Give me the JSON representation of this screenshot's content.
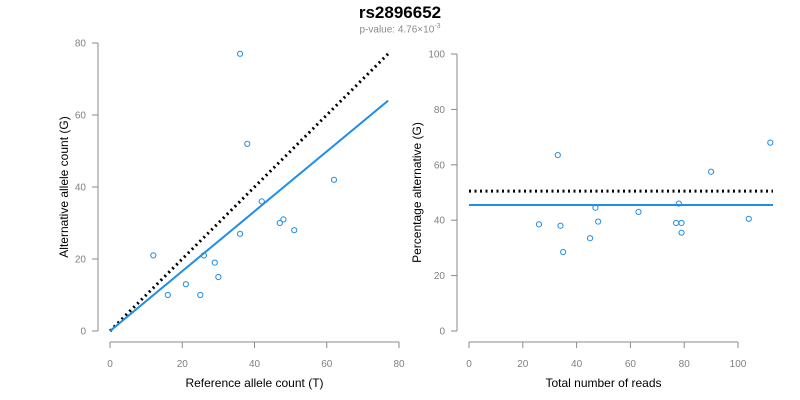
{
  "header": {
    "title": "rs2896652",
    "pvalue_prefix": "p-value: 4.76×10",
    "pvalue_exp": "-3"
  },
  "colors": {
    "points": "#1f8ee8",
    "fit_line": "#1f8ee8",
    "ref_line": "#000000",
    "axis": "#8a8a8a"
  },
  "chart_data": [
    {
      "type": "scatter",
      "xlabel": "Reference allele count (T)",
      "ylabel": "Alternative allele count (G)",
      "xlim": [
        0,
        80
      ],
      "ylim": [
        0,
        80
      ],
      "xticks": [
        0,
        20,
        40,
        60,
        80
      ],
      "yticks": [
        0,
        20,
        40,
        60,
        80
      ],
      "grid": false,
      "points": [
        {
          "x": 12,
          "y": 21
        },
        {
          "x": 16,
          "y": 10
        },
        {
          "x": 21,
          "y": 13
        },
        {
          "x": 25,
          "y": 10
        },
        {
          "x": 26,
          "y": 21
        },
        {
          "x": 29,
          "y": 19
        },
        {
          "x": 30,
          "y": 15
        },
        {
          "x": 36,
          "y": 77
        },
        {
          "x": 36,
          "y": 27
        },
        {
          "x": 38,
          "y": 52
        },
        {
          "x": 42,
          "y": 36
        },
        {
          "x": 47,
          "y": 30
        },
        {
          "x": 48,
          "y": 31
        },
        {
          "x": 51,
          "y": 28
        },
        {
          "x": 62,
          "y": 42
        }
      ],
      "fit_line": {
        "x": [
          0,
          77
        ],
        "y": [
          0,
          64
        ]
      },
      "reference_line": {
        "x": [
          0,
          77
        ],
        "y": [
          0,
          77
        ],
        "style": "dotted"
      }
    },
    {
      "type": "scatter",
      "xlabel": "Total number of reads",
      "ylabel": "Percentage alternative (G)",
      "xlim": [
        0,
        113
      ],
      "ylim": [
        0,
        100
      ],
      "xticks": [
        0,
        20,
        40,
        60,
        80,
        100
      ],
      "yticks": [
        0,
        20,
        40,
        60,
        80,
        100
      ],
      "grid": false,
      "points": [
        {
          "x": 26,
          "y": 38.5
        },
        {
          "x": 33,
          "y": 63.5
        },
        {
          "x": 34,
          "y": 38
        },
        {
          "x": 35,
          "y": 28.5
        },
        {
          "x": 45,
          "y": 33.5
        },
        {
          "x": 47,
          "y": 44.5
        },
        {
          "x": 48,
          "y": 39.5
        },
        {
          "x": 63,
          "y": 43
        },
        {
          "x": 77,
          "y": 39
        },
        {
          "x": 78,
          "y": 46
        },
        {
          "x": 79,
          "y": 35.5
        },
        {
          "x": 79,
          "y": 39
        },
        {
          "x": 90,
          "y": 57.5
        },
        {
          "x": 104,
          "y": 40.5
        },
        {
          "x": 112,
          "y": 68
        }
      ],
      "fit_line": {
        "x": [
          0,
          113
        ],
        "y": [
          45.5,
          45.5
        ]
      },
      "reference_line": {
        "x": [
          0,
          113
        ],
        "y": [
          50.5,
          50.5
        ],
        "style": "dotted"
      }
    }
  ]
}
